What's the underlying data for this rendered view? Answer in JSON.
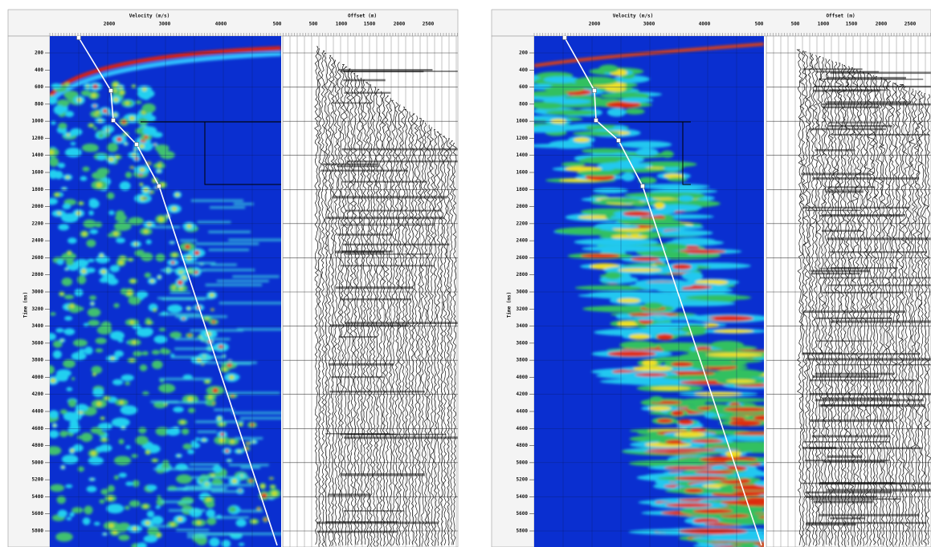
{
  "panels": [
    {
      "velocity_axis": {
        "title": "Velocity (m/s)",
        "ticks": [
          "2000",
          "3000",
          "4000",
          "500"
        ]
      },
      "offset_axis": {
        "title": "Offset (m)",
        "ticks": [
          "500",
          "1000",
          "1500",
          "2000",
          "2500"
        ]
      },
      "time_axis": {
        "title": "Time (ms)",
        "ticks": [
          "200",
          "400",
          "600",
          "800",
          "1000",
          "1200",
          "1400",
          "1600",
          "1800",
          "2000",
          "2200",
          "2400",
          "2600",
          "2800",
          "3000",
          "3200",
          "3400",
          "3600",
          "3800",
          "4000",
          "4200",
          "4400",
          "4600",
          "4800",
          "5000",
          "5200",
          "5400",
          "5600",
          "5800"
        ]
      }
    },
    {
      "velocity_axis": {
        "title": "Velocity (m/s)",
        "ticks": [
          "2000",
          "3000",
          "4000",
          "500"
        ]
      },
      "offset_axis": {
        "title": "Offset (m)",
        "ticks": [
          "500",
          "1000",
          "1500",
          "2000",
          "2500"
        ]
      },
      "time_axis": {
        "title": "Time (ms)",
        "ticks": [
          "200",
          "400",
          "600",
          "800",
          "1000",
          "1200",
          "1400",
          "1600",
          "1800",
          "2000",
          "2200",
          "2400",
          "2600",
          "2800",
          "3000",
          "3200",
          "3400",
          "3600",
          "3800",
          "4000",
          "4200",
          "4400",
          "4600",
          "4800",
          "5000",
          "5200",
          "5400",
          "5600",
          "5800"
        ]
      }
    }
  ]
}
